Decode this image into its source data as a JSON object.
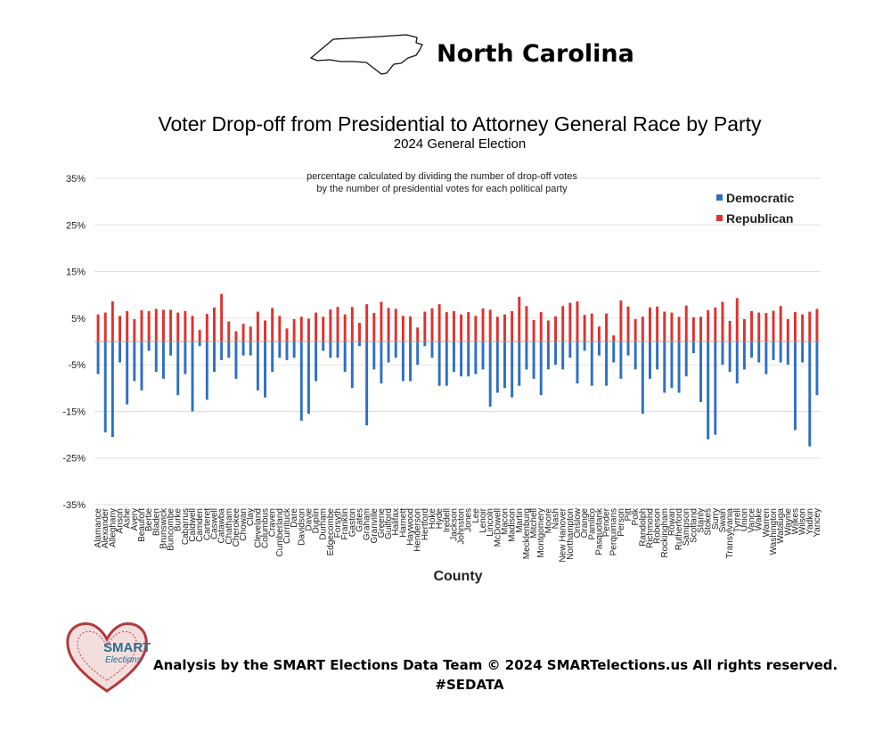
{
  "header": {
    "state_name": "North Carolina",
    "state_icon": "north-carolina-outline-icon"
  },
  "chart_data": {
    "type": "bar",
    "title": "Voter Drop-off from Presidential to Attorney General Race by Party",
    "subtitle": "2024 General Election",
    "annotation": [
      "percentage calculated by dividing the number of drop-off votes",
      "by the number of presidential votes for each political party"
    ],
    "xlabel": "County",
    "ylabel": "",
    "ylim": [
      -35,
      35
    ],
    "yticks": [
      "35%",
      "25%",
      "15%",
      "5%",
      "-5%",
      "-15%",
      "-25%",
      "-35%"
    ],
    "grid": true,
    "legend_position": "top-right",
    "categories": [
      "Alamance",
      "Alexander",
      "Alleghany",
      "Anson",
      "Ashe",
      "Avery",
      "Beaufort",
      "Bertie",
      "Bladen",
      "Brunswick",
      "Buncombe",
      "Burke",
      "Cabarrus",
      "Caldwell",
      "Camden",
      "Carteret",
      "Caswell",
      "Catawba",
      "Chatham",
      "Cherokee",
      "Chowan",
      "Clay",
      "Cleveland",
      "Columbus",
      "Craven",
      "Cumberland",
      "Currituck",
      "Dare",
      "Davidson",
      "Davie",
      "Duplin",
      "Durham",
      "Edgecombe",
      "Forsyth",
      "Franklin",
      "Gaston",
      "Gates",
      "Graham",
      "Granville",
      "Greene",
      "Guilford",
      "Halifax",
      "Harnett",
      "Haywood",
      "Henderson",
      "Hertford",
      "Hoke",
      "Hyde",
      "Iredell",
      "Jackson",
      "Johnston",
      "Jones",
      "Lee",
      "Lenoir",
      "Lincoln",
      "McDowell",
      "Macon",
      "Madison",
      "Martin",
      "Mecklenburg",
      "Mitchell",
      "Montgomery",
      "Moore",
      "Nash",
      "New Hanover",
      "Northampton",
      "Onslow",
      "Orange",
      "Pamlico",
      "Pasquotank",
      "Pender",
      "Perquimans",
      "Person",
      "Pitt",
      "Polk",
      "Randolph",
      "Richmond",
      "Robeson",
      "Rockingham",
      "Rowan",
      "Rutherford",
      "Sampson",
      "Scotland",
      "Stanly",
      "Stokes",
      "Surry",
      "Swain",
      "Transylvania",
      "Tyrrell",
      "Union",
      "Vance",
      "Wake",
      "Warren",
      "Washington",
      "Watauga",
      "Wayne",
      "Wilkes",
      "Wilson",
      "Yadkin",
      "Yancey"
    ],
    "series": [
      {
        "name": "Democratic",
        "color": "#2f6fc4",
        "values": [
          -7,
          -19.5,
          -20.5,
          -4.5,
          -13.5,
          -8.5,
          -10.5,
          -2,
          -6.5,
          -8,
          -3,
          -11.5,
          -7,
          -15,
          -1,
          -12.5,
          -6.5,
          -4,
          -3.5,
          -8,
          -3,
          -3,
          -10.5,
          -12,
          -6.5,
          -3.5,
          -4,
          -3.5,
          -17,
          -15.5,
          -8.5,
          -2,
          -3.5,
          -3.5,
          -6.5,
          -10,
          -1,
          -18,
          -6,
          -9,
          -4.5,
          -3.5,
          -8.5,
          -8.5,
          -5,
          -1,
          -3.5,
          -9.5,
          -9.5,
          -6.5,
          -7.5,
          -7.5,
          -7,
          -6,
          -14,
          -11,
          -10,
          -12,
          -9.5,
          -6,
          -8,
          -11.5,
          -6,
          -5,
          -6,
          -3.5,
          -9,
          -2,
          -9.5,
          -3,
          -9.5,
          -4.5,
          -8,
          -3,
          -6,
          -15.5,
          -8,
          -6,
          -11,
          -10,
          -11,
          -7.5,
          -2.5,
          -13,
          -21,
          -20,
          -5,
          -6.5,
          -9,
          -6,
          -3.5,
          -4.5,
          -7,
          -4,
          -4.5,
          -5,
          -19,
          -4.5,
          -22.5,
          -11.5
        ]
      },
      {
        "name": "Republican",
        "color": "#e0312d",
        "values": [
          5.8,
          6.2,
          8.6,
          5.5,
          6.5,
          4.8,
          6.7,
          6.5,
          7,
          6.8,
          6.8,
          6.2,
          6.5,
          5.5,
          2.5,
          5.9,
          7.3,
          10.2,
          4.3,
          2.2,
          3.8,
          3.2,
          6.4,
          4.5,
          7.2,
          5.5,
          2.8,
          4.8,
          5.3,
          4.9,
          6.2,
          5.3,
          6.9,
          7.4,
          5.8,
          7.4,
          4,
          8,
          6.1,
          8.5,
          7.2,
          7,
          5.5,
          5.4,
          3,
          6.4,
          7.1,
          8,
          6.3,
          6.5,
          5.8,
          6.3,
          5.5,
          7.1,
          6.8,
          5.3,
          5.8,
          6.5,
          9.6,
          7.6,
          4.6,
          6.3,
          4.5,
          5.4,
          7.6,
          8.3,
          8.6,
          5.7,
          6,
          3.2,
          6,
          1.3,
          8.8,
          7.5,
          4.8,
          5.3,
          7.3,
          7.5,
          6.4,
          6.2,
          5.3,
          7.7,
          5.2,
          5.3,
          6.7,
          7.3,
          8.5,
          4.4,
          9.3,
          4.8,
          6.5,
          6.2,
          6.1,
          6.6,
          7.6,
          4.8,
          6.3,
          5.8,
          6.4,
          7
        ]
      }
    ]
  },
  "footer": {
    "logo_text_main": "SMART",
    "logo_text_sub": "Elections",
    "credit": "Analysis by the SMART Elections Data Team © 2024 SMARTelections.us All rights reserved.",
    "hashtag": "#SEDATA"
  }
}
